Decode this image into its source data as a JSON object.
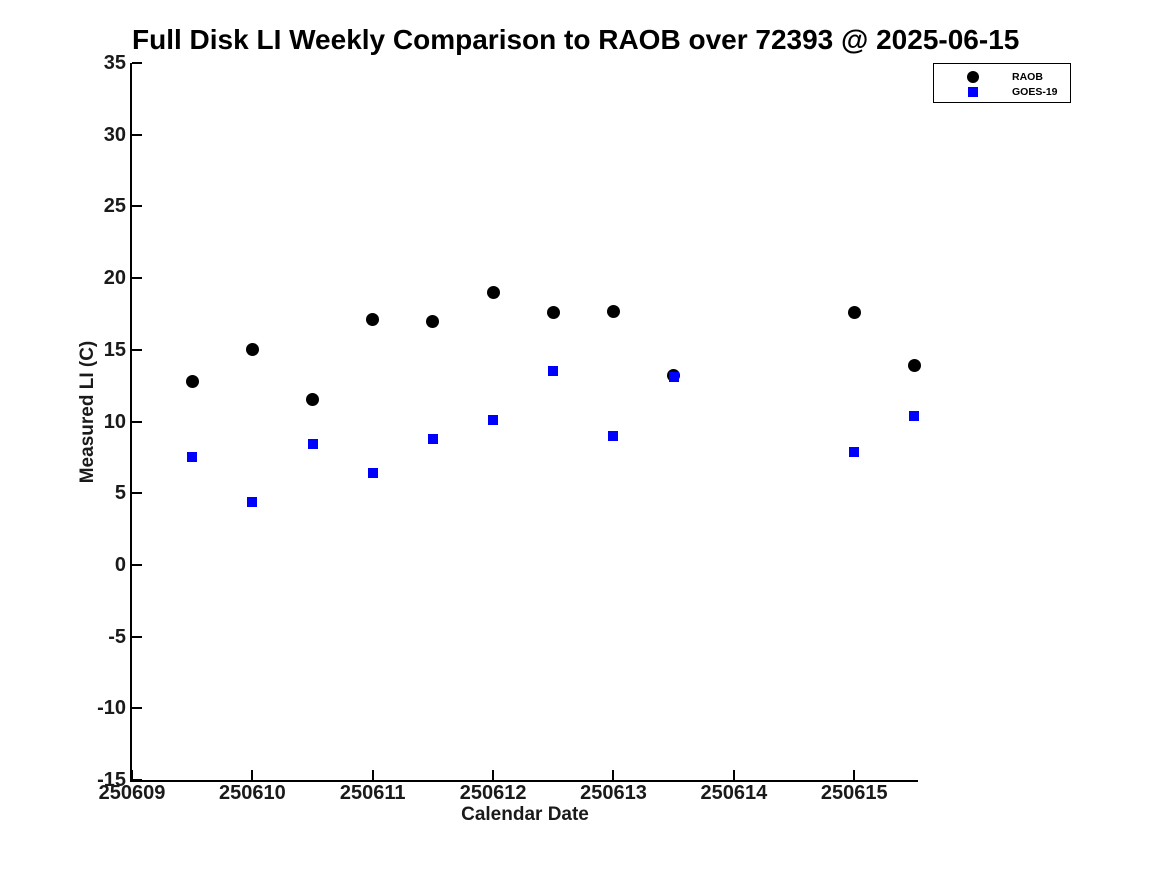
{
  "figure": {
    "title": "Full Disk LI Weekly Comparison to RAOB over 72393 @ 2025-06-15",
    "background_color": "#ffffff"
  },
  "axes": {
    "xlabel": "Calendar Date",
    "ylabel": "Measured LI (C)",
    "x_tick_labels": [
      "250609",
      "250610",
      "250611",
      "250612",
      "250613",
      "250614",
      "250615"
    ],
    "y_tick_labels": [
      "35",
      "30",
      "25",
      "20",
      "15",
      "10",
      "5",
      "0",
      "-5",
      "-10",
      "-15"
    ],
    "axis_color": "#000000",
    "tick_label_color": "#1a1a1a"
  },
  "legend": {
    "items": [
      {
        "label": "RAOB",
        "marker": "circle-icon",
        "color": "#000000"
      },
      {
        "label": "GOES-19",
        "marker": "square-icon",
        "color": "#0000ff"
      }
    ]
  },
  "chart_data": {
    "type": "scatter",
    "title": "Full Disk LI Weekly Comparison to RAOB over 72393 @ 2025-06-15",
    "xlabel": "Calendar Date",
    "ylabel": "Measured LI (C)",
    "xlim": [
      250609,
      250615.53
    ],
    "ylim": [
      -15,
      35
    ],
    "x_ticks": [
      250609,
      250610,
      250611,
      250612,
      250613,
      250614,
      250615
    ],
    "y_ticks": [
      35,
      30,
      25,
      20,
      15,
      10,
      5,
      0,
      -5,
      -10,
      -15
    ],
    "grid": false,
    "legend_position": "top-right",
    "series": [
      {
        "name": "RAOB",
        "marker": "circle",
        "color": "#000000",
        "x": [
          250609.5,
          250610.0,
          250610.5,
          250611.0,
          250611.5,
          250612.0,
          250612.5,
          250613.0,
          250613.5,
          250615.0,
          250615.5
        ],
        "y": [
          12.8,
          15.0,
          11.5,
          17.1,
          17.0,
          19.0,
          17.6,
          17.7,
          13.2,
          17.6,
          13.9
        ]
      },
      {
        "name": "GOES-19",
        "marker": "square",
        "color": "#0000ff",
        "x": [
          250609.5,
          250610.0,
          250610.5,
          250611.0,
          250611.5,
          250612.0,
          250612.5,
          250613.0,
          250613.5,
          250615.0,
          250615.5
        ],
        "y": [
          7.5,
          4.4,
          8.4,
          6.4,
          8.8,
          10.1,
          13.5,
          9.0,
          13.1,
          7.9,
          10.4
        ]
      }
    ]
  }
}
